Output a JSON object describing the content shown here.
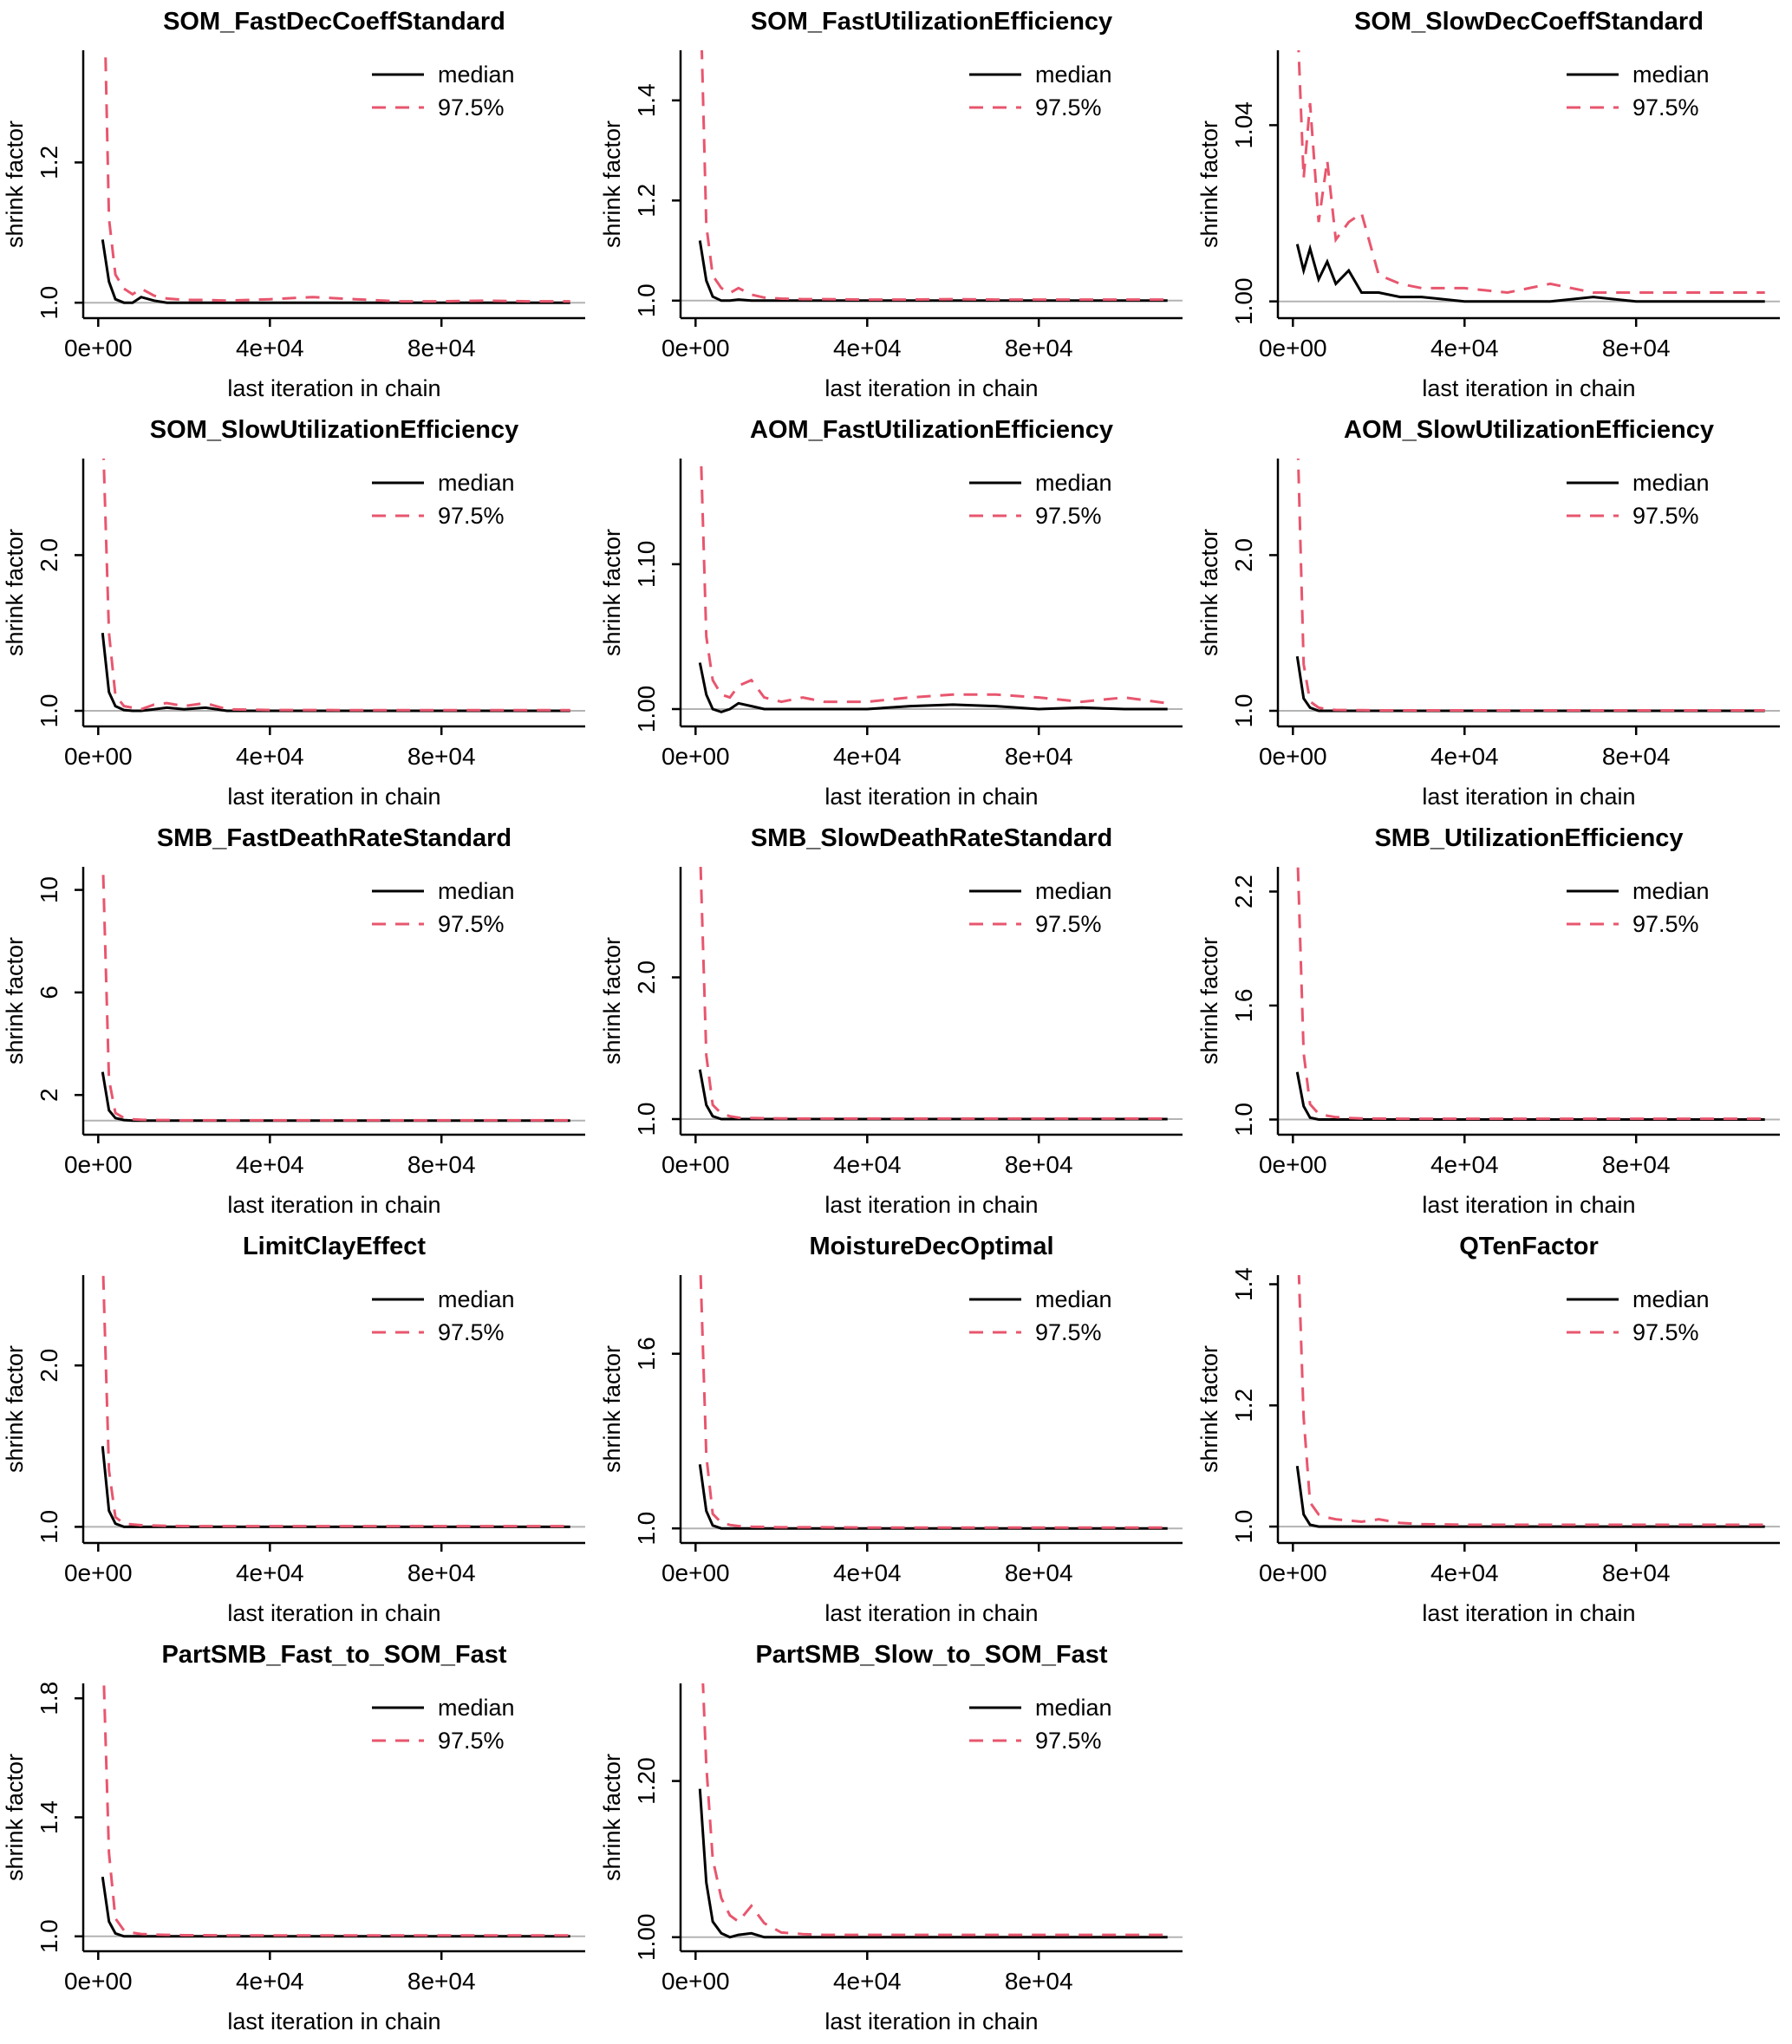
{
  "chart_data": {
    "type": "line",
    "description": "Gelman-Rubin shrink factor convergence diagnostic plots",
    "xlabel": "last iteration in chain",
    "ylabel": "shrink factor",
    "grid": false,
    "legend_position": "top-right",
    "legend": [
      {
        "label": "median",
        "color": "#000000",
        "style": "solid"
      },
      {
        "label": "97.5%",
        "color": "#e8566e",
        "style": "dashed"
      }
    ],
    "colors": {
      "median": "#000000",
      "upper": "#e8566e",
      "axis": "#000000",
      "reference": "#b3b3b3"
    },
    "reference_line_y": 1.0,
    "xlim": [
      -3500,
      113500
    ],
    "xticks": {
      "values": [
        0,
        40000,
        80000
      ],
      "labels": [
        "0e+00",
        "4e+04",
        "8e+04"
      ]
    },
    "x": [
      1000,
      2500,
      4000,
      6000,
      8000,
      10000,
      13000,
      16000,
      20000,
      25000,
      30000,
      40000,
      50000,
      60000,
      70000,
      80000,
      90000,
      100000,
      110000
    ],
    "charts": [
      {
        "title": "SOM_FastDecCoeffStandard",
        "ylim": [
          0.978,
          1.36
        ],
        "yticks": [
          1.0,
          1.2
        ],
        "ytick_labels": [
          "1.0",
          "1.2"
        ],
        "series": [
          {
            "name": "median",
            "values": [
              1.09,
              1.03,
              1.005,
              1.0,
              1.0,
              1.008,
              1.003,
              1.0,
              1.0,
              1.0,
              1.0,
              1.0,
              1.0,
              1.0,
              1.0,
              1.0,
              1.0,
              1.0,
              1.0
            ]
          },
          {
            "name": "97.5%",
            "values": [
              1.55,
              1.12,
              1.04,
              1.02,
              1.012,
              1.02,
              1.01,
              1.006,
              1.004,
              1.004,
              1.003,
              1.005,
              1.008,
              1.005,
              1.002,
              1.002,
              1.003,
              1.002,
              1.002
            ]
          }
        ]
      },
      {
        "title": "SOM_FastUtilizationEfficiency",
        "ylim": [
          0.965,
          1.5
        ],
        "yticks": [
          1.0,
          1.2,
          1.4
        ],
        "ytick_labels": [
          "1.0",
          "1.2",
          "1.4"
        ],
        "series": [
          {
            "name": "median",
            "values": [
              1.12,
              1.04,
              1.008,
              1.0,
              1.0,
              1.002,
              1.0,
              1.0,
              1.0,
              1.0,
              1.0,
              1.0,
              1.0,
              1.0,
              1.0,
              1.0,
              1.0,
              1.0,
              1.0
            ]
          },
          {
            "name": "97.5%",
            "values": [
              1.65,
              1.15,
              1.05,
              1.025,
              1.015,
              1.025,
              1.012,
              1.006,
              1.004,
              1.003,
              1.003,
              1.002,
              1.002,
              1.003,
              1.002,
              1.002,
              1.002,
              1.002,
              1.002
            ]
          }
        ]
      },
      {
        "title": "SOM_SlowDecCoeffStandard",
        "ylim": [
          0.9962,
          1.057
        ],
        "yticks": [
          1.0,
          1.04
        ],
        "ytick_labels": [
          "1.00",
          "1.04"
        ],
        "series": [
          {
            "name": "median",
            "values": [
              1.013,
              1.007,
              1.012,
              1.005,
              1.009,
              1.004,
              1.007,
              1.002,
              1.002,
              1.001,
              1.001,
              1.0,
              1.0,
              1.0,
              1.001,
              1.0,
              1.0,
              1.0,
              1.0
            ]
          },
          {
            "name": "97.5%",
            "values": [
              1.065,
              1.028,
              1.045,
              1.018,
              1.032,
              1.014,
              1.018,
              1.02,
              1.006,
              1.004,
              1.003,
              1.003,
              1.002,
              1.004,
              1.002,
              1.002,
              1.002,
              1.002,
              1.002
            ]
          }
        ]
      },
      {
        "title": "SOM_SlowUtilizationEfficiency",
        "ylim": [
          0.9,
          2.62
        ],
        "yticks": [
          1.0,
          2.0
        ],
        "ytick_labels": [
          "1.0",
          "2.0"
        ],
        "series": [
          {
            "name": "median",
            "values": [
              1.5,
              1.12,
              1.03,
              1.005,
              1.0,
              1.0,
              1.01,
              1.02,
              1.01,
              1.02,
              1.0,
              1.0,
              1.0,
              1.0,
              1.0,
              1.0,
              1.0,
              1.0,
              1.0
            ]
          },
          {
            "name": "97.5%",
            "values": [
              2.85,
              1.5,
              1.1,
              1.03,
              1.02,
              1.01,
              1.04,
              1.05,
              1.03,
              1.05,
              1.01,
              1.005,
              1.005,
              1.004,
              1.004,
              1.004,
              1.004,
              1.004,
              1.004
            ]
          }
        ]
      },
      {
        "title": "AOM_FastUtilizationEfficiency",
        "ylim": [
          0.988,
          1.173
        ],
        "yticks": [
          1.0,
          1.1
        ],
        "ytick_labels": [
          "1.00",
          "1.10"
        ],
        "series": [
          {
            "name": "median",
            "values": [
              1.032,
              1.01,
              1.0,
              0.998,
              1.0,
              1.004,
              1.002,
              1.0,
              1.0,
              1.0,
              1.0,
              1.0,
              1.002,
              1.003,
              1.002,
              1.0,
              1.001,
              1.0,
              1.0
            ]
          },
          {
            "name": "97.5%",
            "values": [
              1.2,
              1.05,
              1.02,
              1.01,
              1.008,
              1.016,
              1.02,
              1.008,
              1.005,
              1.008,
              1.005,
              1.005,
              1.008,
              1.01,
              1.01,
              1.008,
              1.005,
              1.008,
              1.004
            ]
          }
        ]
      },
      {
        "title": "AOM_SlowUtilizationEfficiency",
        "ylim": [
          0.9,
          2.62
        ],
        "yticks": [
          1.0,
          2.0
        ],
        "ytick_labels": [
          "1.0",
          "2.0"
        ],
        "series": [
          {
            "name": "median",
            "values": [
              1.35,
              1.08,
              1.02,
              1.0,
              1.0,
              1.0,
              1.0,
              1.0,
              1.0,
              1.0,
              1.0,
              1.0,
              1.0,
              1.0,
              1.0,
              1.0,
              1.0,
              1.0,
              1.0
            ]
          },
          {
            "name": "97.5%",
            "values": [
              2.85,
              1.3,
              1.06,
              1.02,
              1.01,
              1.006,
              1.005,
              1.004,
              1.003,
              1.003,
              1.003,
              1.003,
              1.003,
              1.003,
              1.003,
              1.003,
              1.003,
              1.003,
              1.003
            ]
          }
        ]
      },
      {
        "title": "SMB_FastDeathRateStandard",
        "ylim": [
          0.45,
          10.9
        ],
        "yticks": [
          2,
          6,
          10
        ],
        "ytick_labels": [
          "2",
          "6",
          "10"
        ],
        "series": [
          {
            "name": "median",
            "values": [
              2.9,
              1.4,
              1.1,
              1.02,
              1.0,
              1.0,
              1.0,
              1.0,
              1.0,
              1.0,
              1.0,
              1.0,
              1.0,
              1.0,
              1.0,
              1.0,
              1.0,
              1.0,
              1.0
            ]
          },
          {
            "name": "97.5%",
            "values": [
              11.5,
              2.6,
              1.3,
              1.1,
              1.05,
              1.03,
              1.02,
              1.02,
              1.01,
              1.01,
              1.01,
              1.01,
              1.01,
              1.01,
              1.01,
              1.01,
              1.01,
              1.01,
              1.01
            ]
          }
        ]
      },
      {
        "title": "SMB_SlowDeathRateStandard",
        "ylim": [
          0.89,
          2.78
        ],
        "yticks": [
          1.0,
          2.0
        ],
        "ytick_labels": [
          "1.0",
          "2.0"
        ],
        "series": [
          {
            "name": "median",
            "values": [
              1.35,
              1.1,
              1.02,
              1.0,
              1.0,
              1.0,
              1.0,
              1.0,
              1.0,
              1.0,
              1.0,
              1.0,
              1.0,
              1.0,
              1.0,
              1.0,
              1.0,
              1.0,
              1.0
            ]
          },
          {
            "name": "97.5%",
            "values": [
              2.95,
              1.45,
              1.1,
              1.04,
              1.02,
              1.01,
              1.008,
              1.006,
              1.005,
              1.004,
              1.004,
              1.004,
              1.004,
              1.004,
              1.004,
              1.004,
              1.004,
              1.004,
              1.004
            ]
          }
        ]
      },
      {
        "title": "SMB_UtilizationEfficiency",
        "ylim": [
          0.92,
          2.33
        ],
        "yticks": [
          1.0,
          1.6,
          2.2
        ],
        "ytick_labels": [
          "1.0",
          "1.6",
          "2.2"
        ],
        "series": [
          {
            "name": "median",
            "values": [
              1.25,
              1.07,
              1.01,
              1.0,
              1.0,
              1.0,
              1.0,
              1.0,
              1.0,
              1.0,
              1.0,
              1.0,
              1.0,
              1.0,
              1.0,
              1.0,
              1.0,
              1.0,
              1.0
            ]
          },
          {
            "name": "97.5%",
            "values": [
              2.45,
              1.35,
              1.08,
              1.03,
              1.02,
              1.012,
              1.008,
              1.006,
              1.005,
              1.004,
              1.004,
              1.004,
              1.004,
              1.004,
              1.004,
              1.004,
              1.004,
              1.004,
              1.004
            ]
          }
        ]
      },
      {
        "title": "LimitClayEffect",
        "ylim": [
          0.9,
          2.56
        ],
        "yticks": [
          1.0,
          2.0
        ],
        "ytick_labels": [
          "1.0",
          "2.0"
        ],
        "series": [
          {
            "name": "median",
            "values": [
              1.5,
              1.1,
              1.02,
              1.0,
              1.0,
              1.0,
              1.0,
              1.0,
              1.0,
              1.0,
              1.0,
              1.0,
              1.0,
              1.0,
              1.0,
              1.0,
              1.0,
              1.0,
              1.0
            ]
          },
          {
            "name": "97.5%",
            "values": [
              2.7,
              1.35,
              1.06,
              1.02,
              1.015,
              1.01,
              1.008,
              1.006,
              1.005,
              1.004,
              1.004,
              1.004,
              1.004,
              1.004,
              1.004,
              1.004,
              1.004,
              1.004,
              1.004
            ]
          }
        ]
      },
      {
        "title": "MoistureDecOptimal",
        "ylim": [
          0.95,
          1.87
        ],
        "yticks": [
          1.0,
          1.6
        ],
        "ytick_labels": [
          "1.0",
          "1.6"
        ],
        "series": [
          {
            "name": "median",
            "values": [
              1.22,
              1.06,
              1.01,
              1.0,
              1.0,
              1.0,
              1.0,
              1.0,
              1.0,
              1.0,
              1.0,
              1.0,
              1.0,
              1.0,
              1.0,
              1.0,
              1.0,
              1.0,
              1.0
            ]
          },
          {
            "name": "97.5%",
            "values": [
              1.95,
              1.25,
              1.05,
              1.02,
              1.012,
              1.008,
              1.006,
              1.005,
              1.004,
              1.004,
              1.004,
              1.003,
              1.003,
              1.003,
              1.003,
              1.003,
              1.003,
              1.003,
              1.003
            ]
          }
        ]
      },
      {
        "title": "QTenFactor",
        "ylim": [
          0.973,
          1.415
        ],
        "yticks": [
          1.0,
          1.2,
          1.4
        ],
        "ytick_labels": [
          "1.0",
          "1.2",
          "1.4"
        ],
        "series": [
          {
            "name": "median",
            "values": [
              1.1,
              1.02,
              1.003,
              1.0,
              1.0,
              1.0,
              1.0,
              1.0,
              1.0,
              1.0,
              1.0,
              1.0,
              1.0,
              1.0,
              1.0,
              1.0,
              1.0,
              1.0,
              1.0
            ]
          },
          {
            "name": "97.5%",
            "values": [
              1.5,
              1.18,
              1.04,
              1.02,
              1.015,
              1.012,
              1.01,
              1.008,
              1.012,
              1.006,
              1.004,
              1.003,
              1.003,
              1.003,
              1.003,
              1.003,
              1.003,
              1.003,
              1.003
            ]
          }
        ]
      },
      {
        "title": "PartSMB_Fast_to_SOM_Fast",
        "ylim": [
          0.95,
          1.85
        ],
        "yticks": [
          1.0,
          1.4,
          1.8
        ],
        "ytick_labels": [
          "1.0",
          "1.4",
          "1.8"
        ],
        "series": [
          {
            "name": "median",
            "values": [
              1.2,
              1.05,
              1.01,
              1.0,
              1.0,
              1.0,
              1.0,
              1.0,
              1.0,
              1.0,
              1.0,
              1.0,
              1.0,
              1.0,
              1.0,
              1.0,
              1.0,
              1.0,
              1.0
            ]
          },
          {
            "name": "97.5%",
            "values": [
              2.0,
              1.28,
              1.06,
              1.02,
              1.012,
              1.008,
              1.006,
              1.005,
              1.004,
              1.004,
              1.003,
              1.003,
              1.003,
              1.003,
              1.003,
              1.003,
              1.003,
              1.003,
              1.003
            ]
          }
        ]
      },
      {
        "title": "PartSMB_Slow_to_SOM_Fast",
        "ylim": [
          0.982,
          1.325
        ],
        "yticks": [
          1.0,
          1.2
        ],
        "ytick_labels": [
          "1.00",
          "1.20"
        ],
        "series": [
          {
            "name": "median",
            "values": [
              1.19,
              1.07,
              1.02,
              1.005,
              1.0,
              1.003,
              1.005,
              1.0,
              1.0,
              1.0,
              1.0,
              1.0,
              1.0,
              1.0,
              1.0,
              1.0,
              1.0,
              1.0,
              1.0
            ]
          },
          {
            "name": "97.5%",
            "values": [
              1.42,
              1.22,
              1.1,
              1.05,
              1.028,
              1.02,
              1.04,
              1.018,
              1.006,
              1.004,
              1.003,
              1.003,
              1.003,
              1.003,
              1.003,
              1.003,
              1.003,
              1.003,
              1.003
            ]
          }
        ]
      }
    ]
  }
}
